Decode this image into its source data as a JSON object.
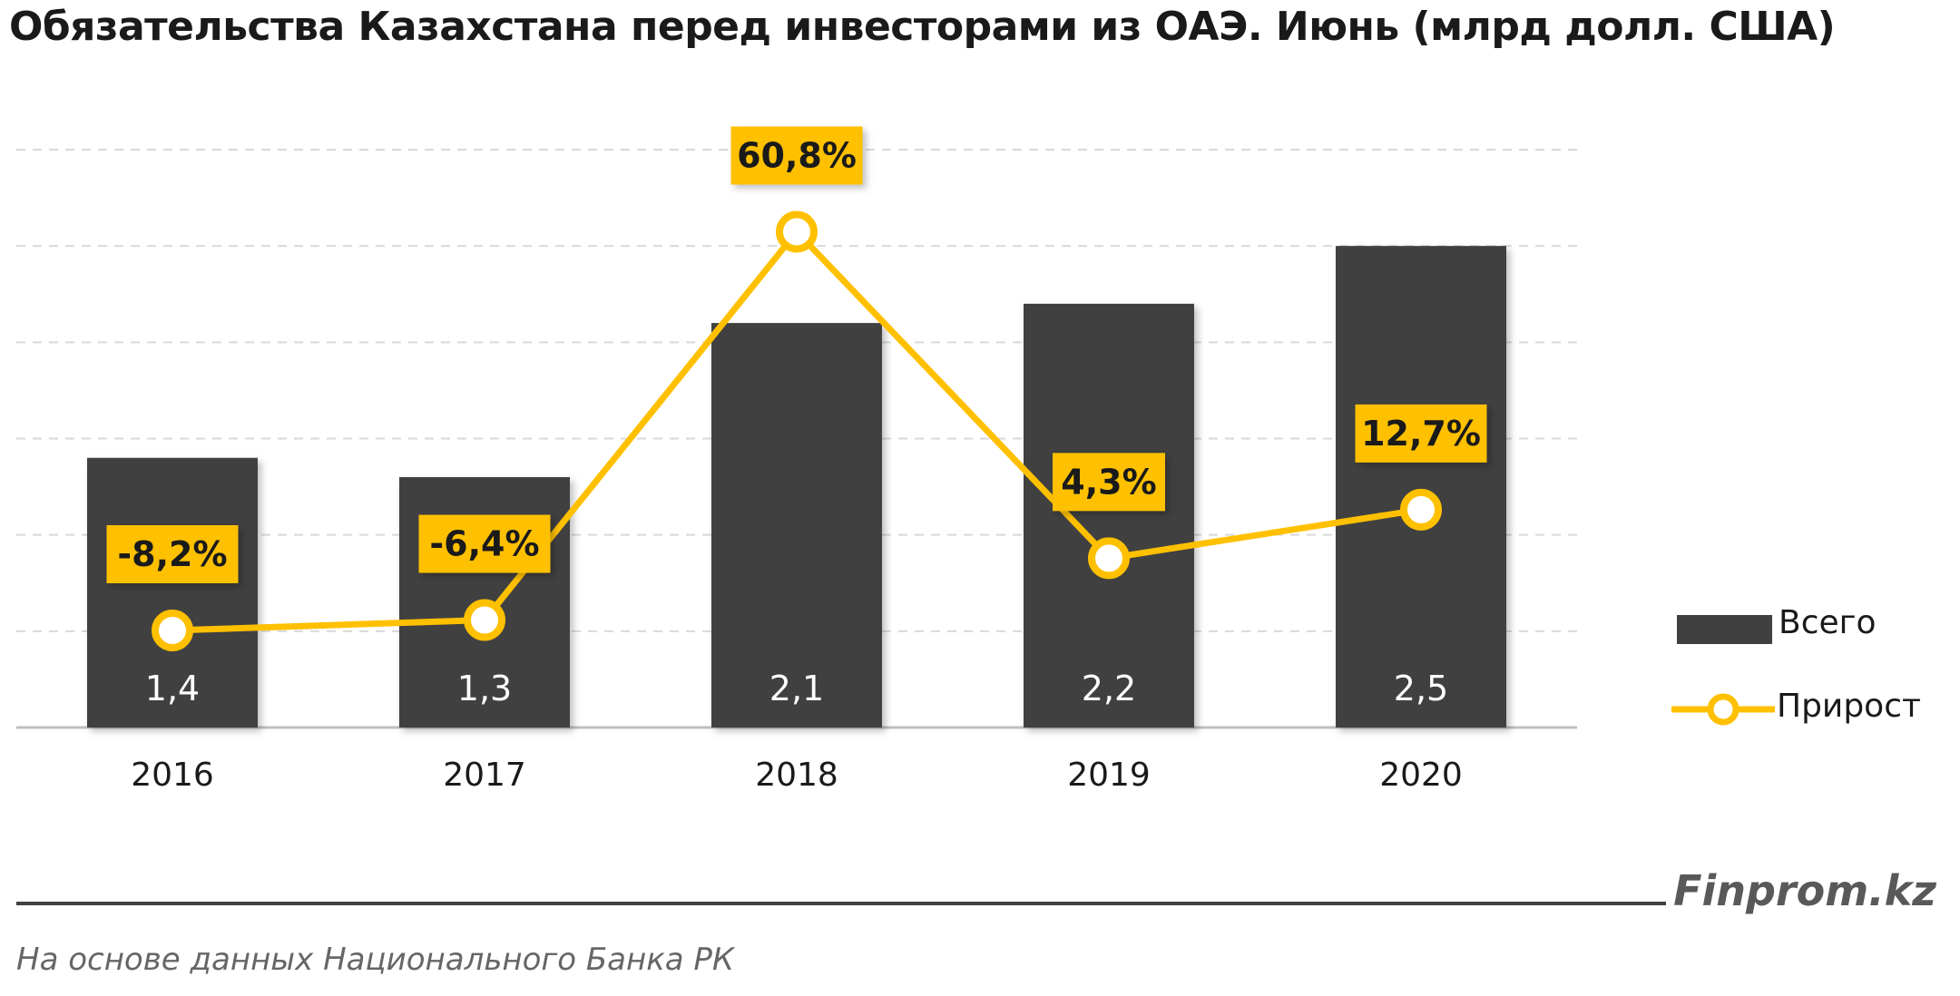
{
  "chart_data": {
    "type": "bar",
    "title": "Обязательства Казахстана  перед инвесторами из ОАЭ. Июнь (млрд долл. США)",
    "categories": [
      "2016",
      "2017",
      "2018",
      "2019",
      "2020"
    ],
    "series": [
      {
        "name": "Всего",
        "type": "bar",
        "values": [
          1.4,
          1.3,
          2.1,
          2.2,
          2.5
        ],
        "labels": [
          "1,4",
          "1,3",
          "2,1",
          "2,2",
          "2,5"
        ],
        "color": "#404040"
      },
      {
        "name": "Прирост",
        "type": "line",
        "values": [
          -8.2,
          -6.4,
          60.8,
          4.3,
          12.7
        ],
        "labels": [
          "-8,2%",
          "-6,4%",
          "60,8%",
          "4,3%",
          "12,7%"
        ],
        "color": "#FFC000"
      }
    ],
    "ylim": [
      0,
      3.0
    ],
    "y2lim": [
      -25,
      75
    ],
    "grid": true,
    "legend": "right"
  },
  "brand": "Finprom.kz",
  "source": "На основе данных Национального  Банка РК",
  "colors": {
    "bar": "#404040",
    "line": "#FFC000",
    "label_box": "#FFC000",
    "grid": "#d9d9d9"
  }
}
